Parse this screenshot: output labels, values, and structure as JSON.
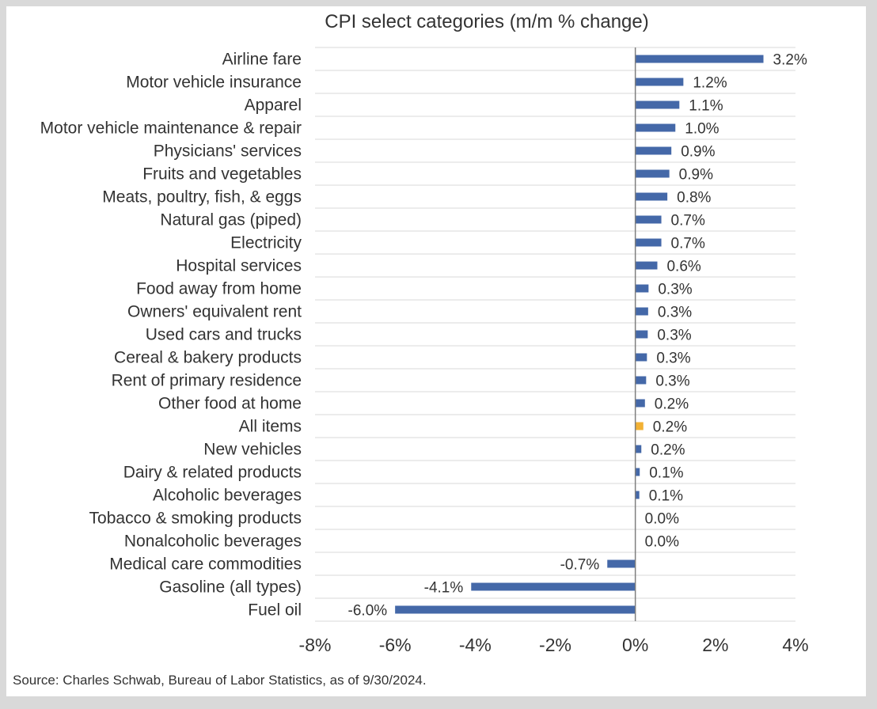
{
  "chart_data": {
    "type": "bar",
    "orientation": "horizontal",
    "title": "CPI select categories (m/m % change)",
    "xlabel": "",
    "ylabel": "",
    "xlim": [
      -8,
      4
    ],
    "x_ticks": [
      -8,
      -6,
      -4,
      -2,
      0,
      2,
      4
    ],
    "x_tick_labels": [
      "-8%",
      "-6%",
      "-4%",
      "-2%",
      "0%",
      "2%",
      "4%"
    ],
    "grid": true,
    "legend": "none",
    "bar_color": "#4468a8",
    "highlight_color": "#f2b134",
    "highlight_category": "All items",
    "categories": [
      "Airline fare",
      "Motor vehicle insurance",
      "Apparel",
      "Motor vehicle maintenance & repair",
      "Physicians' services",
      "Fruits and vegetables",
      "Meats, poultry, fish, & eggs",
      "Natural gas (piped)",
      "Electricity",
      "Hospital services",
      "Food away from home",
      "Owners' equivalent rent",
      "Used cars and trucks",
      "Cereal & bakery products",
      "Rent of primary residence",
      "Other food at home",
      "All items",
      "New vehicles",
      "Dairy & related products",
      "Alcoholic beverages",
      "Tobacco & smoking products",
      "Nonalcoholic beverages",
      "Medical care commodities",
      "Gasoline (all types)",
      "Fuel oil"
    ],
    "values": [
      3.2,
      1.2,
      1.1,
      1.0,
      0.9,
      0.85,
      0.8,
      0.65,
      0.65,
      0.55,
      0.33,
      0.32,
      0.31,
      0.29,
      0.27,
      0.24,
      0.2,
      0.15,
      0.11,
      0.1,
      0.0,
      0.0,
      -0.7,
      -4.1,
      -6.0
    ],
    "data_labels": [
      "3.2%",
      "1.2%",
      "1.1%",
      "1.0%",
      "0.9%",
      "0.9%",
      "0.8%",
      "0.7%",
      "0.7%",
      "0.6%",
      "0.3%",
      "0.3%",
      "0.3%",
      "0.3%",
      "0.3%",
      "0.2%",
      "0.2%",
      "0.2%",
      "0.1%",
      "0.1%",
      "0.0%",
      "0.0%",
      "-0.7%",
      "-4.1%",
      "-6.0%"
    ],
    "source": "Source: Charles Schwab, Bureau of Labor Statistics, as of 9/30/2024."
  }
}
